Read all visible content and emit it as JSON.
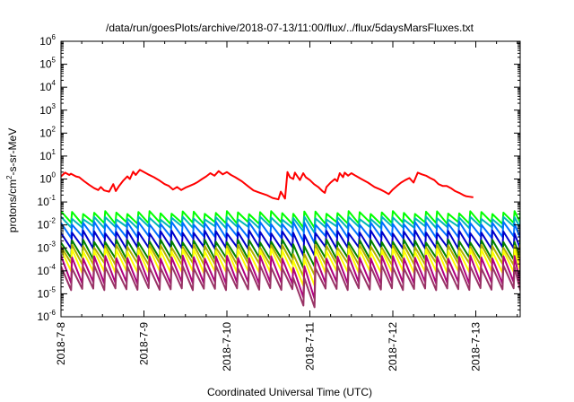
{
  "chart_data": {
    "type": "line",
    "title": "/data/run/goesPlots/archive/2018-07-13/11:00/flux/../flux/5daysMarsFluxes.txt",
    "xlabel": "Coordinated Universal Time (UTC)",
    "ylabel": {
      "base": "protons/cm",
      "sup": "2",
      "rest": "-s-sr-MeV"
    },
    "yscale": "log",
    "ylim": [
      1e-06,
      1000000.0
    ],
    "xlim": [
      "2018-07-08",
      "2018-07-13 12:00"
    ],
    "grid": false,
    "legend": "none",
    "x_ticks": [
      "2018-7-8",
      "2018-7-9",
      "2018-7-10",
      "2018-7-11",
      "2018-7-12",
      "2018-7-13"
    ],
    "y_ticks": [
      {
        "base": "10",
        "exp": "-6"
      },
      {
        "base": "10",
        "exp": "-5"
      },
      {
        "base": "10",
        "exp": "-4"
      },
      {
        "base": "10",
        "exp": "-3"
      },
      {
        "base": "10",
        "exp": "-2"
      },
      {
        "base": "10",
        "exp": "-1"
      },
      {
        "base": "10",
        "exp": "0"
      },
      {
        "base": "10",
        "exp": "1"
      },
      {
        "base": "10",
        "exp": "2"
      },
      {
        "base": "10",
        "exp": "3"
      },
      {
        "base": "10",
        "exp": "4"
      },
      {
        "base": "10",
        "exp": "5"
      },
      {
        "base": "10",
        "exp": "6"
      }
    ],
    "series": [
      {
        "color": "#ff0000",
        "points": [
          [
            0.0,
            1.3
          ],
          [
            0.05,
            1.9
          ],
          [
            0.1,
            1.5
          ],
          [
            0.12,
            1.7
          ],
          [
            0.18,
            1.3
          ],
          [
            0.22,
            1.2
          ],
          [
            0.28,
            0.8
          ],
          [
            0.34,
            0.55
          ],
          [
            0.4,
            0.4
          ],
          [
            0.45,
            0.33
          ],
          [
            0.48,
            0.45
          ],
          [
            0.52,
            0.32
          ],
          [
            0.58,
            0.28
          ],
          [
            0.63,
            0.6
          ],
          [
            0.66,
            0.3
          ],
          [
            0.7,
            0.5
          ],
          [
            0.75,
            0.85
          ],
          [
            0.8,
            1.3
          ],
          [
            0.83,
            1.0
          ],
          [
            0.87,
            2.1
          ],
          [
            0.9,
            1.5
          ],
          [
            0.95,
            2.5
          ],
          [
            1.0,
            2.0
          ],
          [
            1.05,
            1.6
          ],
          [
            1.12,
            1.2
          ],
          [
            1.18,
            0.9
          ],
          [
            1.25,
            0.6
          ],
          [
            1.3,
            0.5
          ],
          [
            1.35,
            0.35
          ],
          [
            1.4,
            0.45
          ],
          [
            1.45,
            0.33
          ],
          [
            1.5,
            0.42
          ],
          [
            1.55,
            0.5
          ],
          [
            1.6,
            0.6
          ],
          [
            1.65,
            0.75
          ],
          [
            1.7,
            1.0
          ],
          [
            1.75,
            1.3
          ],
          [
            1.8,
            1.8
          ],
          [
            1.85,
            1.4
          ],
          [
            1.9,
            2.2
          ],
          [
            1.95,
            1.6
          ],
          [
            2.0,
            2.0
          ],
          [
            2.05,
            1.5
          ],
          [
            2.1,
            1.2
          ],
          [
            2.18,
            0.8
          ],
          [
            2.25,
            0.5
          ],
          [
            2.32,
            0.32
          ],
          [
            2.4,
            0.25
          ],
          [
            2.48,
            0.2
          ],
          [
            2.55,
            0.15
          ],
          [
            2.62,
            0.13
          ],
          [
            2.65,
            0.28
          ],
          [
            2.7,
            0.14
          ],
          [
            2.73,
            2.0
          ],
          [
            2.76,
            1.2
          ],
          [
            2.8,
            1.0
          ],
          [
            2.82,
            1.9
          ],
          [
            2.85,
            1.3
          ],
          [
            2.88,
            0.9
          ],
          [
            2.92,
            1.8
          ],
          [
            2.95,
            1.2
          ],
          [
            3.0,
            0.9
          ],
          [
            3.05,
            0.6
          ],
          [
            3.1,
            0.45
          ],
          [
            3.15,
            0.3
          ],
          [
            3.18,
            0.25
          ],
          [
            3.2,
            0.45
          ],
          [
            3.25,
            0.7
          ],
          [
            3.3,
            1.0
          ],
          [
            3.33,
            0.8
          ],
          [
            3.36,
            1.8
          ],
          [
            3.4,
            1.2
          ],
          [
            3.42,
            1.9
          ],
          [
            3.46,
            1.4
          ],
          [
            3.5,
            1.8
          ],
          [
            3.55,
            1.4
          ],
          [
            3.62,
            1.0
          ],
          [
            3.7,
            0.7
          ],
          [
            3.78,
            0.45
          ],
          [
            3.85,
            0.35
          ],
          [
            3.9,
            0.28
          ],
          [
            3.95,
            0.22
          ],
          [
            4.0,
            0.35
          ],
          [
            4.05,
            0.5
          ],
          [
            4.1,
            0.7
          ],
          [
            4.15,
            0.9
          ],
          [
            4.2,
            1.1
          ],
          [
            4.25,
            0.7
          ],
          [
            4.3,
            1.9
          ],
          [
            4.35,
            1.6
          ],
          [
            4.4,
            1.4
          ],
          [
            4.45,
            1.1
          ],
          [
            4.5,
            0.9
          ],
          [
            4.55,
            0.6
          ],
          [
            4.6,
            0.5
          ],
          [
            4.65,
            0.5
          ],
          [
            4.7,
            0.4
          ],
          [
            4.75,
            0.3
          ],
          [
            4.8,
            0.25
          ],
          [
            4.85,
            0.2
          ],
          [
            4.88,
            0.18
          ],
          [
            4.92,
            0.17
          ],
          [
            4.97,
            0.16
          ]
        ]
      },
      {
        "color": "#00ff00",
        "peak": 0.035,
        "trough": 0.012,
        "spikes_per_day": 7.5,
        "drop_day": 2.73,
        "drop_factor": 1.0
      },
      {
        "color": "#00b8b8",
        "peak": 0.02,
        "trough": 0.008,
        "spikes_per_day": 7.5,
        "drop_day": 2.73,
        "drop_factor": 1.0
      },
      {
        "color": "#0070ff",
        "peak": 0.012,
        "trough": 0.003,
        "spikes_per_day": 7.5,
        "drop_day": 2.73,
        "drop_factor": 1.0
      },
      {
        "color": "#0000cc",
        "peak": 0.005,
        "trough": 0.001,
        "spikes_per_day": 7.5,
        "drop_day": 2.73,
        "drop_factor": 0.8
      },
      {
        "color": "#008000",
        "peak": 0.002,
        "trough": 0.00035,
        "spikes_per_day": 7.5,
        "drop_day": 2.73,
        "drop_factor": 0.7
      },
      {
        "color": "#b0b000",
        "peak": 0.0012,
        "trough": 0.0002,
        "spikes_per_day": 7.5,
        "drop_day": 2.73,
        "drop_factor": 0.5
      },
      {
        "color": "#ffff00",
        "peak": 0.0008,
        "trough": 9e-05,
        "spikes_per_day": 7.5,
        "drop_day": 2.73,
        "drop_factor": 0.4
      },
      {
        "color": "#b00080",
        "peak": 0.0004,
        "trough": 3e-05,
        "spikes_per_day": 7.5,
        "drop_day": 2.73,
        "drop_factor": 0.35
      },
      {
        "color": "#993366",
        "peak": 0.00015,
        "trough": 1.6e-05,
        "spikes_per_day": 7.5,
        "drop_day": 2.73,
        "drop_factor": 0.3
      }
    ]
  }
}
